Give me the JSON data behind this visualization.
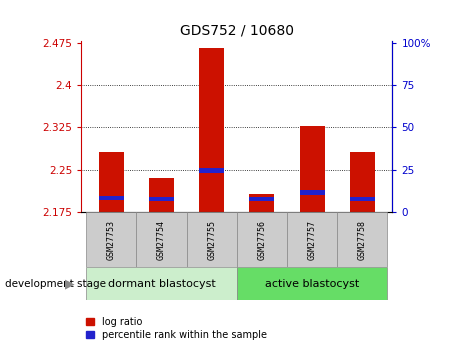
{
  "title": "GDS752 / 10680",
  "samples": [
    "GSM27753",
    "GSM27754",
    "GSM27755",
    "GSM27756",
    "GSM27757",
    "GSM27758"
  ],
  "y_min": 2.175,
  "y_max": 2.475,
  "y_ticks_left": [
    2.175,
    2.25,
    2.325,
    2.4,
    2.475
  ],
  "y_ticks_right": [
    0,
    25,
    50,
    75,
    100
  ],
  "bar_color": "#cc1100",
  "blue_color": "#2222cc",
  "bar_width": 0.5,
  "log_ratio_tops": [
    2.282,
    2.236,
    2.465,
    2.207,
    2.327,
    2.281
  ],
  "percentile_bottoms": [
    2.196,
    2.194,
    2.245,
    2.194,
    2.206,
    2.194
  ],
  "percentile_tops": [
    2.204,
    2.202,
    2.253,
    2.202,
    2.214,
    2.202
  ],
  "legend_items": [
    "log ratio",
    "percentile rank within the sample"
  ],
  "legend_colors": [
    "#cc1100",
    "#2222cc"
  ],
  "stage_label": "development stage",
  "group1_label": "dormant blastocyst",
  "group2_label": "active blastocyst",
  "group1_color": "#cceecc",
  "group2_color": "#66dd66",
  "axis_left_color": "#cc0000",
  "axis_right_color": "#0000cc",
  "grid_vals": [
    2.25,
    2.325,
    2.4
  ],
  "sample_box_color": "#cccccc"
}
